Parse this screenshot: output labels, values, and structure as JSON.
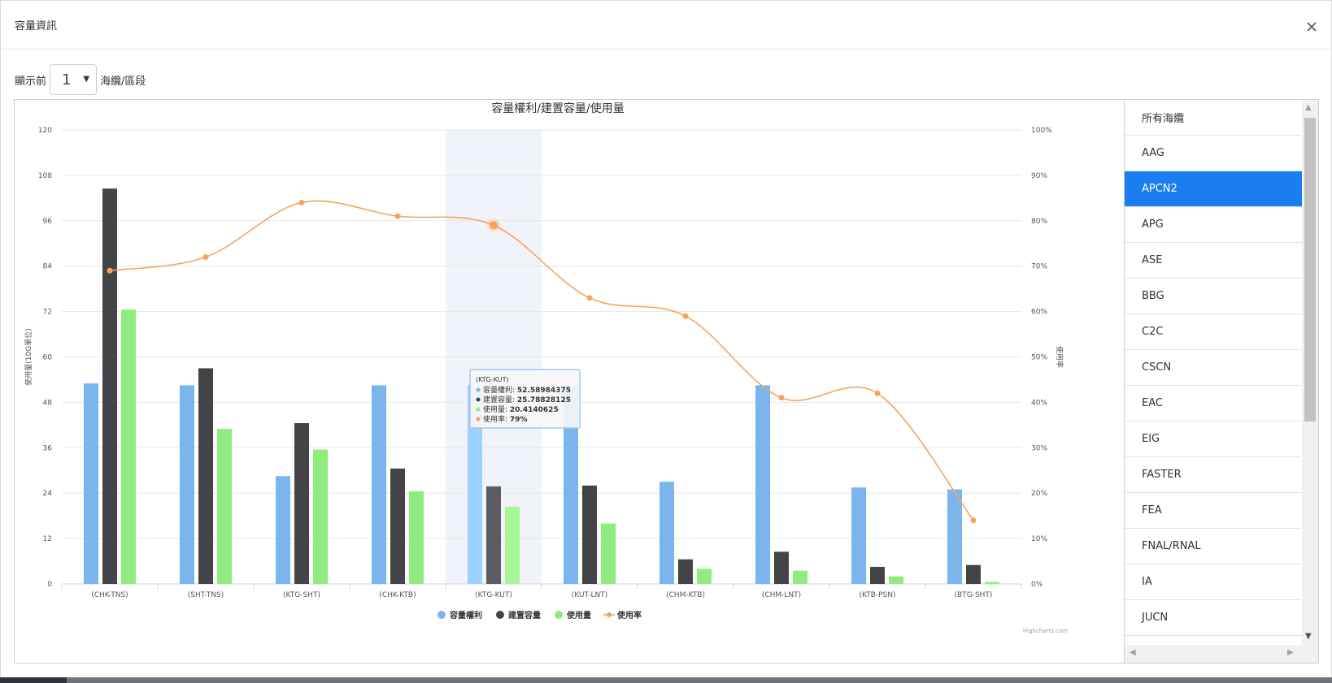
{
  "dialog": {
    "title": "容量資訊"
  },
  "controls": {
    "prefix": "顯示前",
    "selected": "1",
    "suffix": "海纜/區段"
  },
  "chart_data": {
    "type": "bar",
    "title": "容量權利/建置容量/使用量",
    "ylabel_left": "使用量(10G單位)",
    "ylabel_right": "使用率",
    "ylim": [
      0,
      120
    ],
    "yticks": [
      0,
      12,
      24,
      36,
      48,
      60,
      72,
      84,
      96,
      108,
      120
    ],
    "y2lim": [
      0,
      100
    ],
    "y2ticks": [
      "0%",
      "10%",
      "20%",
      "30%",
      "40%",
      "50%",
      "60%",
      "70%",
      "80%",
      "90%",
      "100%"
    ],
    "categories": [
      "(CHK-TNS)",
      "(SHT-TNS)",
      "(KTG-SHT)",
      "(CHK-KTB)",
      "(KTG-KUT)",
      "(KUT-LNT)",
      "(CHM-KTB)",
      "(CHM-LNT)",
      "(KTB-PSN)",
      "(BTG-SHT)"
    ],
    "series": [
      {
        "name": "容量權利",
        "type": "bar",
        "color": "#7cb5ec",
        "values": [
          53,
          52.5,
          28.5,
          52.5,
          52.59,
          52.5,
          27,
          52.5,
          25.5,
          25
        ]
      },
      {
        "name": "建置容量",
        "type": "bar",
        "color": "#434348",
        "values": [
          104.5,
          57,
          42.5,
          30.5,
          25.79,
          26,
          6.5,
          8.5,
          4.5,
          5
        ]
      },
      {
        "name": "使用量",
        "type": "bar",
        "color": "#90ed7d",
        "values": [
          72.5,
          41,
          35.5,
          24.5,
          20.41,
          16,
          4,
          3.5,
          2,
          0.5
        ]
      },
      {
        "name": "使用率",
        "type": "line",
        "color": "#f7a35c",
        "axis": "right",
        "values": [
          69,
          72,
          84,
          81,
          79,
          63,
          59,
          41,
          42,
          14
        ]
      }
    ],
    "highlight_index": 4,
    "tooltip": {
      "header": "(KTG-KUT)",
      "rows": [
        {
          "label": "容量權利",
          "value": "52.58984375",
          "color": "#7cb5ec"
        },
        {
          "label": "建置容量",
          "value": "25.78828125",
          "color": "#434348"
        },
        {
          "label": "使用量",
          "value": "20.4140625",
          "color": "#90ed7d"
        },
        {
          "label": "使用率",
          "value": "79%",
          "color": "#f7a35c"
        }
      ]
    },
    "legend_position": "bottom-center",
    "credits": "Highcharts.com"
  },
  "cable_list": {
    "items": [
      "所有海纜",
      "AAG",
      "APCN2",
      "APG",
      "ASE",
      "BBG",
      "C2C",
      "CSCN",
      "EAC",
      "EIG",
      "FASTER",
      "FEA",
      "FNAL/RNAL",
      "IA",
      "JUCN"
    ],
    "active": "APCN2"
  }
}
